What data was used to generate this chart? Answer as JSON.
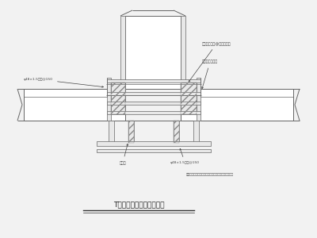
{
  "title": "T字墙处构造柱支模示意图",
  "note": "注：所有模板与墙体接触处均应涂刷脱模剂或垫空隙。",
  "label_top": "角钢对拉螺栓@穿孔后锁具",
  "label_right": "合页铰中与固定",
  "label_left": "φ48×1.5钢管@150",
  "label_bot_left": "小脚柱",
  "label_bot_right": "φ48×1.5钢管@150",
  "bg_color": "#f2f2f2",
  "line_color": "#666666",
  "wall_fill": "#ffffff",
  "board_fill": "#e8e8e8"
}
